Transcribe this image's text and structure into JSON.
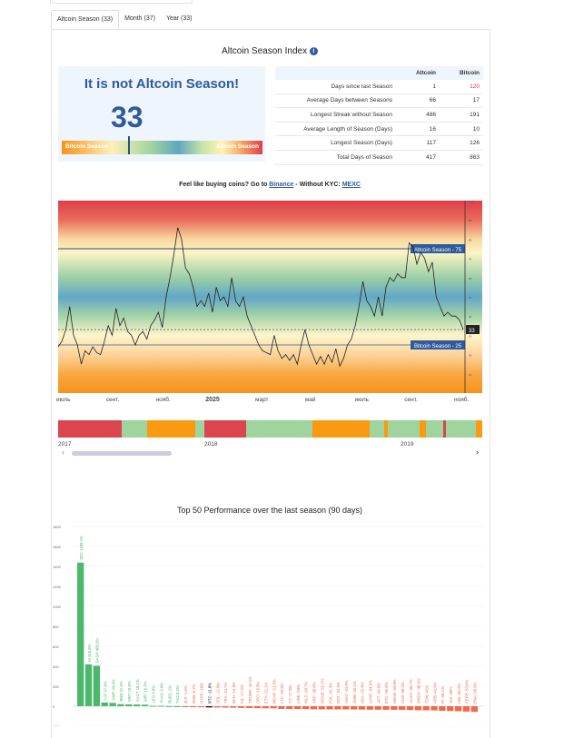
{
  "tabs": [
    {
      "label": "Altcoin Season (33)",
      "active": true
    },
    {
      "label": "Month (37)"
    },
    {
      "label": "Year (33)"
    }
  ],
  "title": "Altcoin Season Index",
  "info_icon": "i",
  "status": {
    "heading": "It is not Altcoin Season!",
    "index": "33",
    "index_value": 33,
    "gauge_left": "Bitcoin Season",
    "gauge_right": "Altcoin Season"
  },
  "stats": {
    "columns": [
      "",
      "Altcoin",
      "Bitcoin"
    ],
    "rows": [
      {
        "label": "Days since last Season",
        "altcoin": "1",
        "bitcoin": "120",
        "bitcoin_highlight": true
      },
      {
        "label": "Average Days between Seasons",
        "altcoin": "66",
        "bitcoin": "17"
      },
      {
        "label": "Longest Streak without Season",
        "altcoin": "486",
        "bitcoin": "191"
      },
      {
        "label": "Average Length of Season (Days)",
        "altcoin": "16",
        "bitcoin": "10"
      },
      {
        "label": "Longest Season (Days)",
        "altcoin": "117",
        "bitcoin": "126"
      },
      {
        "label": "Total Days of Season",
        "altcoin": "417",
        "bitcoin": "863"
      }
    ]
  },
  "promo": {
    "text1": "Feel like buying coins? Go to ",
    "link1": "Binance",
    "text2": " - Without KYC: ",
    "link2": "MEXC"
  },
  "colors": {
    "accent": "#2f5b9c",
    "altcoin": "#df3e4a",
    "bitcoin": "#f7931a",
    "neutral": "#9fd49f",
    "gain": "#4cb86b",
    "loss": "#ef6a4a"
  },
  "chart_data": [
    {
      "type": "line",
      "ylim": [
        0,
        100
      ],
      "x_ticks": [
        "июль",
        "сент.",
        "нояб.",
        "2025",
        "март",
        "май",
        "июль",
        "сент.",
        "нояб."
      ],
      "threshold_lines": [
        {
          "label": "Altcoin Season - 75",
          "value": 75
        },
        {
          "label": "Bitcoin Season - 25",
          "value": 25
        }
      ],
      "current_label": "33",
      "values": [
        24,
        27,
        33,
        45,
        30,
        25,
        15,
        22,
        20,
        24,
        21,
        20,
        27,
        35,
        30,
        44,
        35,
        39,
        32,
        30,
        25,
        30,
        32,
        28,
        35,
        38,
        42,
        34,
        50,
        60,
        72,
        86,
        80,
        65,
        62,
        55,
        45,
        48,
        45,
        52,
        42,
        55,
        48,
        50,
        45,
        60,
        48,
        45,
        50,
        40,
        35,
        30,
        25,
        22,
        21,
        20,
        30,
        22,
        18,
        20,
        17,
        20,
        15,
        25,
        33,
        25,
        20,
        15,
        19,
        15,
        20,
        16,
        23,
        14,
        18,
        25,
        28,
        35,
        45,
        58,
        48,
        45,
        40,
        50,
        40,
        55,
        60,
        58,
        62,
        60,
        60,
        78,
        76,
        67,
        73,
        70,
        63,
        68,
        50,
        45,
        40,
        42,
        40,
        40,
        38,
        33
      ]
    },
    {
      "type": "bar",
      "title": "Top 50 Performance over the last season (90 days)",
      "ylim": [
        -200,
        1800
      ],
      "y_ticks": [
        1800,
        1600,
        1400,
        1200,
        1000,
        800,
        600,
        400,
        200,
        0,
        -200
      ],
      "categories": [
        "ZEC",
        "M",
        "DASH",
        "ICP",
        "XMR",
        "BNB",
        "MNT",
        "XAUT",
        "WBT",
        "LEO",
        "PAXG",
        "BUIDL",
        "TAO",
        "JLP",
        "BGB",
        "HYPE",
        "BTC",
        "SOL",
        "TRX",
        "BCH",
        "FIL",
        "TRUMP",
        "CRO",
        "ETH",
        "NEAR",
        "LTC",
        "CT",
        "LINK",
        "WLD",
        "XRP",
        "DOGE",
        "POL",
        "DOT",
        "AVAX",
        "SHIB",
        "ADA",
        "AAVE",
        "APT",
        "ETC",
        "HBAR",
        "XLM",
        "ALGO",
        "ONDO",
        "TON",
        "ARB",
        "PI",
        "SUI",
        "UNI",
        "PEPE",
        "ENA"
      ],
      "values": [
        1438.1,
        419.8,
        405.9,
        37.6,
        33.6,
        21.4,
        19.6,
        18.1,
        15.5,
        4.8,
        4.6,
        1,
        0.6,
        -1.6,
        -9.2,
        -10,
        -11.8,
        -12.6,
        -13.7,
        -14.6,
        -17.2,
        -19.1,
        -19.6,
        -21.1,
        -21.3,
        -26.8,
        -27.8,
        -28,
        -28.7,
        -30.8,
        -31.1,
        -31.3,
        -31.9,
        -31.6,
        -32.1,
        -33.4,
        -34.5,
        -34.9,
        -35.4,
        -35.8,
        -36.3,
        -38.7,
        -40.6,
        -41,
        -41.6,
        -46.1,
        -48,
        -50.2,
        -53.6,
        -56.9
      ]
    }
  ],
  "navigator": {
    "year_labels": [
      "2017",
      "2018",
      "2019"
    ],
    "segments": [
      [
        "altcoin",
        15
      ],
      [
        "neutral",
        6
      ],
      [
        "bitcoin",
        11.5
      ],
      [
        "neutral",
        2
      ],
      [
        "altcoin",
        10
      ],
      [
        "neutral",
        15.5
      ],
      [
        "bitcoin",
        13.5
      ],
      [
        "neutral",
        3.5
      ],
      [
        "bitcoin",
        1
      ],
      [
        "neutral",
        7.5
      ],
      [
        "bitcoin",
        1.5
      ],
      [
        "neutral",
        4
      ],
      [
        "altcoin",
        0.7
      ],
      [
        "neutral",
        7
      ],
      [
        "bitcoin",
        1.5
      ]
    ]
  },
  "scroll": {
    "left": "‹",
    "right": "›"
  }
}
